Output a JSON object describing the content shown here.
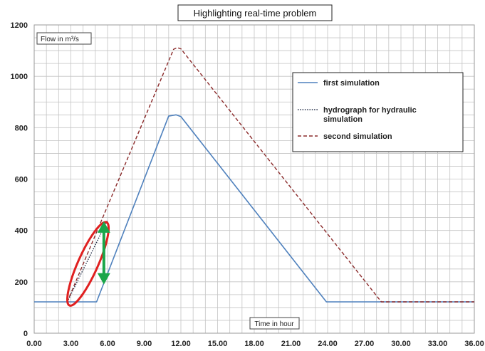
{
  "chart_data": {
    "type": "line",
    "title": "Highlighting real-time problem",
    "ylabel": "Flow in m³/s",
    "xlabel": "Time in hour",
    "xlim": [
      0,
      36
    ],
    "ylim": [
      0,
      1200
    ],
    "x_ticks": [
      "0.00",
      "3.00",
      "6.00",
      "9.00",
      "12.00",
      "15.00",
      "18.00",
      "21.00",
      "24.00",
      "27.00",
      "30.00",
      "33.00",
      "36.00"
    ],
    "y_ticks": [
      "0",
      "200",
      "400",
      "600",
      "800",
      "1000",
      "1200"
    ],
    "grid": true,
    "legend_position": "top-right",
    "series": [
      {
        "name": "first simulation",
        "color": "#4f81bd",
        "style": "solid",
        "points": [
          [
            0,
            122
          ],
          [
            5.1,
            122
          ],
          [
            11.0,
            845
          ],
          [
            11.6,
            850
          ],
          [
            12.0,
            843
          ],
          [
            23.9,
            122
          ],
          [
            36,
            122
          ]
        ]
      },
      {
        "name": "hydrograph for hydraulic simulation",
        "color": "#1f2a44",
        "style": "dotted",
        "points": [
          [
            2.7,
            122
          ],
          [
            6.0,
            440
          ]
        ]
      },
      {
        "name": "second simulation",
        "color": "#8b2b2b",
        "style": "dashed",
        "points": [
          [
            2.7,
            122
          ],
          [
            11.4,
            1105
          ],
          [
            11.7,
            1112
          ],
          [
            12.0,
            1107
          ],
          [
            28.4,
            122
          ],
          [
            36,
            122
          ]
        ]
      }
    ],
    "annotations": [
      {
        "type": "ellipse",
        "color": "#e02020"
      },
      {
        "type": "double-arrow",
        "color": "#1aa64a",
        "x": 5.7,
        "y_from": 430,
        "y_to": 195
      }
    ]
  }
}
